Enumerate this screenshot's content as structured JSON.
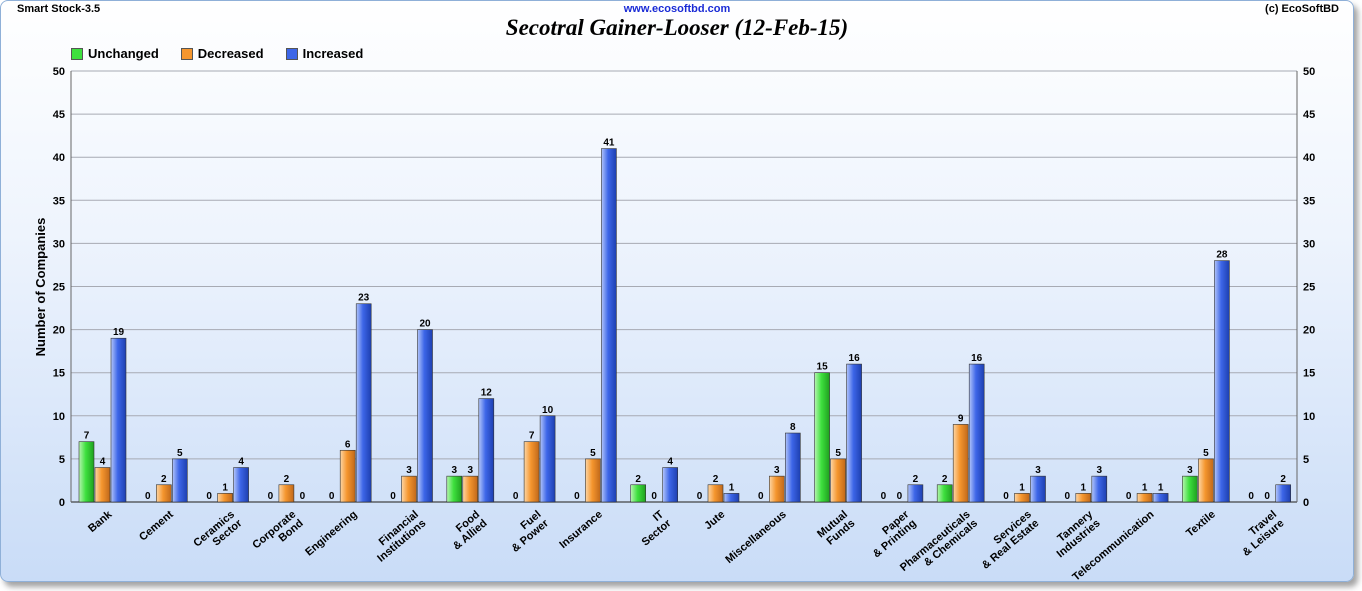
{
  "header": {
    "app_name": "Smart  Stock-3.5",
    "url": "www.ecosoftbd.com",
    "copyright": "(c) EcoSoftBD"
  },
  "colors": {
    "unchanged": "#3ee03e",
    "decreased": "#f5962e",
    "increased": "#3d66e8"
  },
  "chart_data": {
    "type": "bar",
    "title": "Secotral Gainer-Looser (12-Feb-15)",
    "xlabel": "",
    "ylabel": "Number of Companies",
    "ylim": [
      0,
      50
    ],
    "yticks": [
      0,
      5,
      10,
      15,
      20,
      25,
      30,
      35,
      40,
      45,
      50
    ],
    "grid": true,
    "legend_position": "top-left",
    "categories": [
      "Bank",
      "Cement",
      "Ceramics\nSector",
      "Corporate\nBond",
      "Engineering",
      "Financial\nInstitutions",
      "Food\n& Allied",
      "Fuel\n& Power",
      "Insurance",
      "IT\nSector",
      "Jute",
      "Miscellaneous",
      "Mutual\nFunds",
      "Paper\n& Printing",
      "Pharmaceuticals\n& Chemicals",
      "Services\n& Real Estate",
      "Tannery\nIndustries",
      "Telecommunication",
      "Textile",
      "Travel\n& Leisure"
    ],
    "series": [
      {
        "name": "Unchanged",
        "values": [
          7,
          0,
          0,
          0,
          0,
          0,
          3,
          0,
          0,
          2,
          0,
          0,
          15,
          0,
          2,
          0,
          0,
          0,
          3,
          0
        ]
      },
      {
        "name": "Decreased",
        "values": [
          4,
          2,
          1,
          2,
          6,
          3,
          3,
          7,
          5,
          0,
          2,
          3,
          5,
          0,
          9,
          1,
          1,
          1,
          5,
          0
        ]
      },
      {
        "name": "Increased",
        "values": [
          19,
          5,
          4,
          0,
          23,
          20,
          12,
          10,
          41,
          4,
          1,
          8,
          16,
          2,
          16,
          3,
          3,
          1,
          28,
          2
        ]
      }
    ]
  }
}
